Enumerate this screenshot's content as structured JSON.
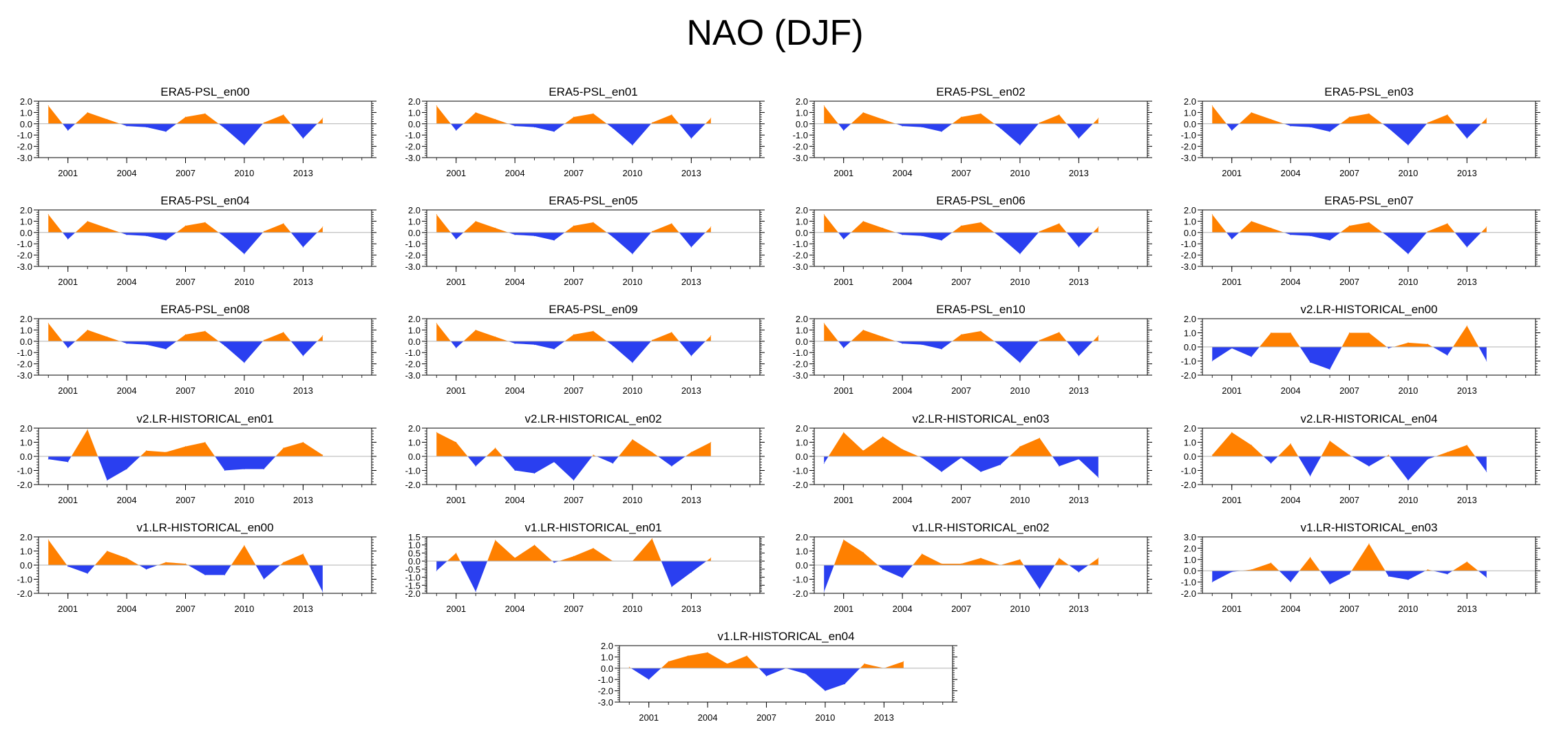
{
  "figure": {
    "title": "NAO (DJF)"
  },
  "colors": {
    "positive": "#ff8000",
    "negative": "#2a3ff0",
    "axis": "#000000",
    "zero_line": "#b0b0b0"
  },
  "chart_data": [
    {
      "type": "area",
      "title": "ERA5-PSL_en00",
      "x": [
        2000,
        2001,
        2002,
        2003,
        2004,
        2005,
        2006,
        2007,
        2008,
        2009,
        2010,
        2011,
        2012,
        2013,
        2014
      ],
      "values": [
        1.6,
        -0.6,
        1.0,
        0.4,
        -0.2,
        -0.3,
        -0.7,
        0.6,
        0.9,
        -0.4,
        -1.9,
        0.1,
        0.8,
        -1.3,
        0.5
      ],
      "xlim": [
        1999.5,
        2016.5
      ],
      "ylim": [
        -3.0,
        2.0
      ],
      "yticks": [
        2.0,
        1.0,
        0.0,
        -1.0,
        -2.0,
        -3.0
      ],
      "xticks": [
        2001,
        2004,
        2007,
        2010,
        2013
      ]
    },
    {
      "type": "area",
      "title": "ERA5-PSL_en01",
      "x": [
        2000,
        2001,
        2002,
        2003,
        2004,
        2005,
        2006,
        2007,
        2008,
        2009,
        2010,
        2011,
        2012,
        2013,
        2014
      ],
      "values": [
        1.6,
        -0.6,
        1.0,
        0.4,
        -0.2,
        -0.3,
        -0.7,
        0.6,
        0.9,
        -0.4,
        -1.9,
        0.1,
        0.8,
        -1.3,
        0.5
      ],
      "xlim": [
        1999.5,
        2016.5
      ],
      "ylim": [
        -3.0,
        2.0
      ],
      "yticks": [
        2.0,
        1.0,
        0.0,
        -1.0,
        -2.0,
        -3.0
      ],
      "xticks": [
        2001,
        2004,
        2007,
        2010,
        2013
      ]
    },
    {
      "type": "area",
      "title": "ERA5-PSL_en02",
      "x": [
        2000,
        2001,
        2002,
        2003,
        2004,
        2005,
        2006,
        2007,
        2008,
        2009,
        2010,
        2011,
        2012,
        2013,
        2014
      ],
      "values": [
        1.6,
        -0.6,
        1.0,
        0.4,
        -0.2,
        -0.3,
        -0.7,
        0.6,
        0.9,
        -0.4,
        -1.9,
        0.1,
        0.8,
        -1.3,
        0.5
      ],
      "xlim": [
        1999.5,
        2016.5
      ],
      "ylim": [
        -3.0,
        2.0
      ],
      "yticks": [
        2.0,
        1.0,
        0.0,
        -1.0,
        -2.0,
        -3.0
      ],
      "xticks": [
        2001,
        2004,
        2007,
        2010,
        2013
      ]
    },
    {
      "type": "area",
      "title": "ERA5-PSL_en03",
      "x": [
        2000,
        2001,
        2002,
        2003,
        2004,
        2005,
        2006,
        2007,
        2008,
        2009,
        2010,
        2011,
        2012,
        2013,
        2014
      ],
      "values": [
        1.6,
        -0.6,
        1.0,
        0.4,
        -0.2,
        -0.3,
        -0.7,
        0.6,
        0.9,
        -0.4,
        -1.9,
        0.1,
        0.8,
        -1.3,
        0.5
      ],
      "xlim": [
        1999.5,
        2016.5
      ],
      "ylim": [
        -3.0,
        2.0
      ],
      "yticks": [
        2.0,
        1.0,
        0.0,
        -1.0,
        -2.0,
        -3.0
      ],
      "xticks": [
        2001,
        2004,
        2007,
        2010,
        2013
      ]
    },
    {
      "type": "area",
      "title": "ERA5-PSL_en04",
      "x": [
        2000,
        2001,
        2002,
        2003,
        2004,
        2005,
        2006,
        2007,
        2008,
        2009,
        2010,
        2011,
        2012,
        2013,
        2014
      ],
      "values": [
        1.6,
        -0.6,
        1.0,
        0.4,
        -0.2,
        -0.3,
        -0.7,
        0.6,
        0.9,
        -0.4,
        -1.9,
        0.1,
        0.8,
        -1.3,
        0.5
      ],
      "xlim": [
        1999.5,
        2016.5
      ],
      "ylim": [
        -3.0,
        2.0
      ],
      "yticks": [
        2.0,
        1.0,
        0.0,
        -1.0,
        -2.0,
        -3.0
      ],
      "xticks": [
        2001,
        2004,
        2007,
        2010,
        2013
      ]
    },
    {
      "type": "area",
      "title": "ERA5-PSL_en05",
      "x": [
        2000,
        2001,
        2002,
        2003,
        2004,
        2005,
        2006,
        2007,
        2008,
        2009,
        2010,
        2011,
        2012,
        2013,
        2014
      ],
      "values": [
        1.6,
        -0.6,
        1.0,
        0.4,
        -0.2,
        -0.3,
        -0.7,
        0.6,
        0.9,
        -0.4,
        -1.9,
        0.1,
        0.8,
        -1.3,
        0.5
      ],
      "xlim": [
        1999.5,
        2016.5
      ],
      "ylim": [
        -3.0,
        2.0
      ],
      "yticks": [
        2.0,
        1.0,
        0.0,
        -1.0,
        -2.0,
        -3.0
      ],
      "xticks": [
        2001,
        2004,
        2007,
        2010,
        2013
      ]
    },
    {
      "type": "area",
      "title": "ERA5-PSL_en06",
      "x": [
        2000,
        2001,
        2002,
        2003,
        2004,
        2005,
        2006,
        2007,
        2008,
        2009,
        2010,
        2011,
        2012,
        2013,
        2014
      ],
      "values": [
        1.6,
        -0.6,
        1.0,
        0.4,
        -0.2,
        -0.3,
        -0.7,
        0.6,
        0.9,
        -0.4,
        -1.9,
        0.1,
        0.8,
        -1.3,
        0.5
      ],
      "xlim": [
        1999.5,
        2016.5
      ],
      "ylim": [
        -3.0,
        2.0
      ],
      "yticks": [
        2.0,
        1.0,
        0.0,
        -1.0,
        -2.0,
        -3.0
      ],
      "xticks": [
        2001,
        2004,
        2007,
        2010,
        2013
      ]
    },
    {
      "type": "area",
      "title": "ERA5-PSL_en07",
      "x": [
        2000,
        2001,
        2002,
        2003,
        2004,
        2005,
        2006,
        2007,
        2008,
        2009,
        2010,
        2011,
        2012,
        2013,
        2014
      ],
      "values": [
        1.6,
        -0.6,
        1.0,
        0.4,
        -0.2,
        -0.3,
        -0.7,
        0.6,
        0.9,
        -0.4,
        -1.9,
        0.1,
        0.8,
        -1.3,
        0.5
      ],
      "xlim": [
        1999.5,
        2016.5
      ],
      "ylim": [
        -3.0,
        2.0
      ],
      "yticks": [
        2.0,
        1.0,
        0.0,
        -1.0,
        -2.0,
        -3.0
      ],
      "xticks": [
        2001,
        2004,
        2007,
        2010,
        2013
      ]
    },
    {
      "type": "area",
      "title": "ERA5-PSL_en08",
      "x": [
        2000,
        2001,
        2002,
        2003,
        2004,
        2005,
        2006,
        2007,
        2008,
        2009,
        2010,
        2011,
        2012,
        2013,
        2014
      ],
      "values": [
        1.6,
        -0.6,
        1.0,
        0.4,
        -0.2,
        -0.3,
        -0.7,
        0.6,
        0.9,
        -0.4,
        -1.9,
        0.1,
        0.8,
        -1.3,
        0.5
      ],
      "xlim": [
        1999.5,
        2016.5
      ],
      "ylim": [
        -3.0,
        2.0
      ],
      "yticks": [
        2.0,
        1.0,
        0.0,
        -1.0,
        -2.0,
        -3.0
      ],
      "xticks": [
        2001,
        2004,
        2007,
        2010,
        2013
      ]
    },
    {
      "type": "area",
      "title": "ERA5-PSL_en09",
      "x": [
        2000,
        2001,
        2002,
        2003,
        2004,
        2005,
        2006,
        2007,
        2008,
        2009,
        2010,
        2011,
        2012,
        2013,
        2014
      ],
      "values": [
        1.6,
        -0.6,
        1.0,
        0.4,
        -0.2,
        -0.3,
        -0.7,
        0.6,
        0.9,
        -0.4,
        -1.9,
        0.1,
        0.8,
        -1.3,
        0.5
      ],
      "xlim": [
        1999.5,
        2016.5
      ],
      "ylim": [
        -3.0,
        2.0
      ],
      "yticks": [
        2.0,
        1.0,
        0.0,
        -1.0,
        -2.0,
        -3.0
      ],
      "xticks": [
        2001,
        2004,
        2007,
        2010,
        2013
      ]
    },
    {
      "type": "area",
      "title": "ERA5-PSL_en10",
      "x": [
        2000,
        2001,
        2002,
        2003,
        2004,
        2005,
        2006,
        2007,
        2008,
        2009,
        2010,
        2011,
        2012,
        2013,
        2014
      ],
      "values": [
        1.6,
        -0.6,
        1.0,
        0.4,
        -0.2,
        -0.3,
        -0.7,
        0.6,
        0.9,
        -0.4,
        -1.9,
        0.1,
        0.8,
        -1.3,
        0.5
      ],
      "xlim": [
        1999.5,
        2016.5
      ],
      "ylim": [
        -3.0,
        2.0
      ],
      "yticks": [
        2.0,
        1.0,
        0.0,
        -1.0,
        -2.0,
        -3.0
      ],
      "xticks": [
        2001,
        2004,
        2007,
        2010,
        2013
      ]
    },
    {
      "type": "area",
      "title": "v2.LR-HISTORICAL_en00",
      "x": [
        2000,
        2001,
        2002,
        2003,
        2004,
        2005,
        2006,
        2007,
        2008,
        2009,
        2010,
        2011,
        2012,
        2013,
        2014
      ],
      "values": [
        -1.0,
        -0.1,
        -0.7,
        1.0,
        1.0,
        -1.1,
        -1.6,
        1.0,
        1.0,
        -0.1,
        0.3,
        0.2,
        -0.6,
        1.5,
        -1.0
      ],
      "xlim": [
        1999.5,
        2016.5
      ],
      "ylim": [
        -2.0,
        2.0
      ],
      "yticks": [
        2.0,
        1.0,
        0.0,
        -1.0,
        -2.0
      ],
      "xticks": [
        2001,
        2004,
        2007,
        2010,
        2013
      ]
    },
    {
      "type": "area",
      "title": "v2.LR-HISTORICAL_en01",
      "x": [
        2000,
        2001,
        2002,
        2003,
        2004,
        2005,
        2006,
        2007,
        2008,
        2009,
        2010,
        2011,
        2012,
        2013,
        2014
      ],
      "values": [
        -0.2,
        -0.4,
        1.9,
        -1.7,
        -0.9,
        0.4,
        0.3,
        0.7,
        1.0,
        -1.0,
        -0.9,
        -0.9,
        0.6,
        1.0,
        0.1
      ],
      "xlim": [
        1999.5,
        2016.5
      ],
      "ylim": [
        -2.0,
        2.0
      ],
      "yticks": [
        2.0,
        1.0,
        0.0,
        -1.0,
        -2.0
      ],
      "xticks": [
        2001,
        2004,
        2007,
        2010,
        2013
      ]
    },
    {
      "type": "area",
      "title": "v2.LR-HISTORICAL_en02",
      "x": [
        2000,
        2001,
        2002,
        2003,
        2004,
        2005,
        2006,
        2007,
        2008,
        2009,
        2010,
        2011,
        2012,
        2013,
        2014
      ],
      "values": [
        1.7,
        1.0,
        -0.7,
        0.6,
        -1.0,
        -1.2,
        -0.4,
        -1.7,
        0.1,
        -0.5,
        1.2,
        0.3,
        -0.7,
        0.3,
        1.0
      ],
      "xlim": [
        1999.5,
        2016.5
      ],
      "ylim": [
        -2.0,
        2.0
      ],
      "yticks": [
        2.0,
        1.0,
        0.0,
        -1.0,
        -2.0
      ],
      "xticks": [
        2001,
        2004,
        2007,
        2010,
        2013
      ]
    },
    {
      "type": "area",
      "title": "v2.LR-HISTORICAL_en03",
      "x": [
        2000,
        2001,
        2002,
        2003,
        2004,
        2005,
        2006,
        2007,
        2008,
        2009,
        2010,
        2011,
        2012,
        2013,
        2014
      ],
      "values": [
        -0.5,
        1.7,
        0.4,
        1.4,
        0.5,
        -0.1,
        -1.1,
        -0.1,
        -1.1,
        -0.6,
        0.7,
        1.3,
        -0.7,
        -0.2,
        -1.5
      ],
      "xlim": [
        1999.5,
        2016.5
      ],
      "ylim": [
        -2.0,
        2.0
      ],
      "yticks": [
        2.0,
        1.0,
        0.0,
        -1.0,
        -2.0
      ],
      "xticks": [
        2001,
        2004,
        2007,
        2010,
        2013
      ]
    },
    {
      "type": "area",
      "title": "v2.LR-HISTORICAL_en04",
      "x": [
        2000,
        2001,
        2002,
        2003,
        2004,
        2005,
        2006,
        2007,
        2008,
        2009,
        2010,
        2011,
        2012,
        2013,
        2014
      ],
      "values": [
        0.1,
        1.7,
        0.8,
        -0.5,
        0.9,
        -1.4,
        1.1,
        0.1,
        -0.7,
        0.1,
        -1.7,
        -0.2,
        0.3,
        0.8,
        -1.1
      ],
      "xlim": [
        1999.5,
        2016.5
      ],
      "ylim": [
        -2.0,
        2.0
      ],
      "yticks": [
        2.0,
        1.0,
        0.0,
        -1.0,
        -2.0
      ],
      "xticks": [
        2001,
        2004,
        2007,
        2010,
        2013
      ]
    },
    {
      "type": "area",
      "title": "v1.LR-HISTORICAL_en00",
      "x": [
        2000,
        2001,
        2002,
        2003,
        2004,
        2005,
        2006,
        2007,
        2008,
        2009,
        2010,
        2011,
        2012,
        2013,
        2014
      ],
      "values": [
        1.8,
        -0.1,
        -0.6,
        1.0,
        0.5,
        -0.3,
        0.2,
        0.1,
        -0.7,
        -0.7,
        1.4,
        -1.0,
        0.2,
        0.8,
        -1.9
      ],
      "xlim": [
        1999.5,
        2016.5
      ],
      "ylim": [
        -2.0,
        2.0
      ],
      "yticks": [
        2.0,
        1.0,
        0.0,
        -1.0,
        -2.0
      ],
      "xticks": [
        2001,
        2004,
        2007,
        2010,
        2013
      ]
    },
    {
      "type": "area",
      "title": "v1.LR-HISTORICAL_en01",
      "x": [
        2000,
        2001,
        2002,
        2003,
        2004,
        2005,
        2006,
        2007,
        2008,
        2009,
        2010,
        2011,
        2012,
        2013,
        2014
      ],
      "values": [
        -0.6,
        0.5,
        -1.9,
        1.3,
        0.2,
        1.0,
        -0.1,
        0.3,
        0.8,
        0.0,
        0.0,
        1.4,
        -1.6,
        -0.7,
        0.2
      ],
      "xlim": [
        1999.5,
        2016.5
      ],
      "ylim": [
        -2.0,
        1.5
      ],
      "yticks": [
        1.5,
        1.0,
        0.5,
        0.0,
        -0.5,
        -1.0,
        -1.5,
        -2.0
      ],
      "xticks": [
        2001,
        2004,
        2007,
        2010,
        2013
      ]
    },
    {
      "type": "area",
      "title": "v1.LR-HISTORICAL_en02",
      "x": [
        2000,
        2001,
        2002,
        2003,
        2004,
        2005,
        2006,
        2007,
        2008,
        2009,
        2010,
        2011,
        2012,
        2013,
        2014
      ],
      "values": [
        -1.9,
        1.8,
        0.9,
        -0.3,
        -0.9,
        0.8,
        0.1,
        0.1,
        0.5,
        0.0,
        0.4,
        -1.7,
        0.5,
        -0.5,
        0.5
      ],
      "xlim": [
        1999.5,
        2016.5
      ],
      "ylim": [
        -2.0,
        2.0
      ],
      "yticks": [
        2.0,
        1.0,
        0.0,
        -1.0,
        -2.0
      ],
      "xticks": [
        2001,
        2004,
        2007,
        2010,
        2013
      ]
    },
    {
      "type": "area",
      "title": "v1.LR-HISTORICAL_en03",
      "x": [
        2000,
        2001,
        2002,
        2003,
        2004,
        2005,
        2006,
        2007,
        2008,
        2009,
        2010,
        2011,
        2012,
        2013,
        2014
      ],
      "values": [
        -1.0,
        -0.1,
        0.1,
        0.7,
        -1.0,
        1.2,
        -1.2,
        -0.3,
        2.4,
        -0.5,
        -0.8,
        0.1,
        -0.3,
        0.8,
        -0.6
      ],
      "xlim": [
        1999.5,
        2016.5
      ],
      "ylim": [
        -2.0,
        3.0
      ],
      "yticks": [
        3.0,
        2.0,
        1.0,
        0.0,
        -1.0,
        -2.0
      ],
      "xticks": [
        2001,
        2004,
        2007,
        2010,
        2013
      ]
    },
    {
      "type": "area",
      "title": "v1.LR-HISTORICAL_en04",
      "x": [
        2000,
        2001,
        2002,
        2003,
        2004,
        2005,
        2006,
        2007,
        2008,
        2009,
        2010,
        2011,
        2012,
        2013,
        2014
      ],
      "values": [
        0.1,
        -1.0,
        0.6,
        1.1,
        1.4,
        0.4,
        1.1,
        -0.7,
        0.0,
        -0.5,
        -2.0,
        -1.4,
        0.4,
        0.0,
        0.6
      ],
      "xlim": [
        1999.5,
        2016.5
      ],
      "ylim": [
        -3.0,
        2.0
      ],
      "yticks": [
        2.0,
        1.0,
        0.0,
        -1.0,
        -2.0,
        -3.0
      ],
      "xticks": [
        2001,
        2004,
        2007,
        2010,
        2013
      ]
    }
  ]
}
